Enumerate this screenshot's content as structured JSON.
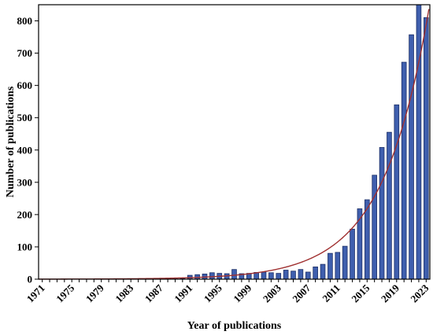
{
  "chart_data": {
    "type": "bar",
    "xlabel": "Year of publications",
    "ylabel": "Number of publications",
    "ylim": [
      0,
      850
    ],
    "y_ticks": [
      0,
      100,
      200,
      300,
      400,
      500,
      600,
      700,
      800
    ],
    "x_tick_labels": [
      "1971",
      "1975",
      "1979",
      "1983",
      "1987",
      "1991",
      "1995",
      "1999",
      "2003",
      "2007",
      "2011",
      "2015",
      "2019",
      "2023"
    ],
    "categories": [
      "1971",
      "1972",
      "1973",
      "1974",
      "1975",
      "1976",
      "1977",
      "1978",
      "1979",
      "1980",
      "1981",
      "1982",
      "1983",
      "1984",
      "1985",
      "1986",
      "1987",
      "1988",
      "1989",
      "1990",
      "1991",
      "1992",
      "1993",
      "1994",
      "1995",
      "1996",
      "1997",
      "1998",
      "1999",
      "2000",
      "2001",
      "2002",
      "2003",
      "2004",
      "2005",
      "2006",
      "2007",
      "2008",
      "2009",
      "2010",
      "2011",
      "2012",
      "2013",
      "2014",
      "2015",
      "2016",
      "2017",
      "2018",
      "2019",
      "2020",
      "2021",
      "2022",
      "2023"
    ],
    "values": [
      0,
      0,
      0,
      0,
      0,
      0,
      0,
      0,
      0,
      0,
      0,
      0,
      0,
      0,
      0,
      0,
      0,
      1,
      1,
      2,
      12,
      14,
      16,
      20,
      18,
      17,
      30,
      17,
      18,
      21,
      22,
      20,
      18,
      28,
      25,
      30,
      22,
      38,
      46,
      80,
      83,
      102,
      155,
      218,
      246,
      322,
      408,
      455,
      540,
      672,
      757,
      850,
      810
    ],
    "trendline": {
      "type": "exponential",
      "color": "#a03030"
    },
    "bar_color": "#3f5fae",
    "grid": false,
    "legend": "none"
  }
}
